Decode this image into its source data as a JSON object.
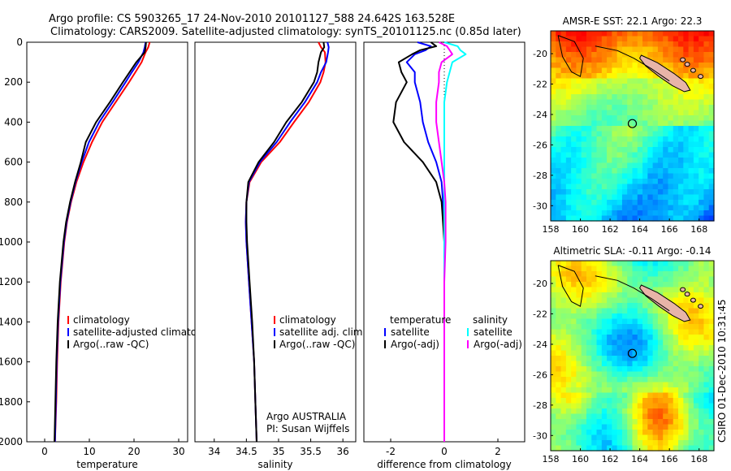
{
  "title_line1": "Argo profile: CS 5903265_17 24-Nov-2010 20101127_588 24.642S 163.528E",
  "title_line2": "Climatology: CARS2009. Satellite-adjusted climatology: synTS_20101125.nc (0.85d later)",
  "footer_text": "CSIRO 01-Dec-2010 10:31:45",
  "colors": {
    "red": "#ff0000",
    "blue": "#0000ff",
    "black": "#000000",
    "cyan": "#00ffff",
    "magenta": "#ff00ff"
  },
  "chart_data": [
    {
      "type": "line",
      "id": "temperature",
      "xlabel": "temperature",
      "xlim": [
        -4,
        32
      ],
      "ylim": [
        2000,
        0
      ],
      "xticks": [
        0,
        10,
        20,
        30
      ],
      "yticks": [
        0,
        200,
        400,
        600,
        800,
        1000,
        1200,
        1400,
        1600,
        1800,
        2000
      ],
      "y": [
        0,
        25,
        50,
        100,
        150,
        200,
        300,
        400,
        500,
        600,
        700,
        800,
        900,
        1000,
        1200,
        1400,
        1600,
        1800,
        2000
      ],
      "series": [
        {
          "name": "climatology",
          "color": "red",
          "values": [
            23.5,
            23.2,
            22.6,
            21.7,
            20.3,
            18.9,
            15.9,
            12.9,
            10.6,
            8.7,
            7.1,
            5.9,
            5.0,
            4.4,
            3.6,
            3.1,
            2.8,
            2.6,
            2.3
          ]
        },
        {
          "name": "satellite-adjusted climatology",
          "color": "blue",
          "values": [
            22.6,
            22.4,
            22.1,
            21.0,
            19.5,
            18.1,
            15.2,
            12.2,
            9.9,
            8.3,
            6.9,
            5.8,
            4.9,
            4.3,
            3.5,
            3.0,
            2.7,
            2.5,
            2.3
          ]
        },
        {
          "name": "Argo(..raw -QC)",
          "color": "black",
          "values": [
            22.7,
            22.6,
            22.4,
            20.5,
            19.0,
            17.5,
            14.6,
            11.5,
            9.2,
            8.1,
            6.8,
            5.7,
            4.8,
            4.2,
            3.4,
            2.9,
            2.6,
            2.4,
            2.2
          ]
        }
      ],
      "legend": [
        "climatology",
        "satellite-adjusted climatolog",
        "Argo(..raw -QC)"
      ],
      "legend_placement": "lower-right"
    },
    {
      "type": "line",
      "id": "salinity",
      "xlabel": "salinity",
      "xlim": [
        33.7,
        36.2
      ],
      "ylim": [
        2000,
        0
      ],
      "xticks": [
        34,
        34.5,
        35,
        35.5,
        36
      ],
      "xticklabels": [
        "34",
        "34.5",
        "35",
        "35.5",
        "36"
      ],
      "y": [
        0,
        25,
        50,
        100,
        150,
        200,
        300,
        400,
        500,
        600,
        700,
        800,
        900,
        1000,
        1200,
        1400,
        1600,
        1800,
        2000
      ],
      "series": [
        {
          "name": "climatology",
          "color": "red",
          "values": [
            35.62,
            35.66,
            35.72,
            35.73,
            35.7,
            35.65,
            35.47,
            35.24,
            35.02,
            34.73,
            34.55,
            34.5,
            34.49,
            34.5,
            34.54,
            34.58,
            34.62,
            34.64,
            34.66
          ]
        },
        {
          "name": "satellite adj. clim.",
          "color": "blue",
          "values": [
            35.76,
            35.78,
            35.77,
            35.74,
            35.66,
            35.6,
            35.41,
            35.18,
            34.97,
            34.71,
            34.54,
            34.5,
            34.49,
            34.5,
            34.54,
            34.58,
            34.62,
            34.64,
            34.66
          ]
        },
        {
          "name": "Argo(..raw -QC)",
          "color": "black",
          "values": [
            35.7,
            35.71,
            35.66,
            35.62,
            35.6,
            35.55,
            35.36,
            35.12,
            34.93,
            34.69,
            34.53,
            34.5,
            34.5,
            34.51,
            34.55,
            34.59,
            34.62,
            34.64,
            34.66
          ]
        }
      ],
      "legend": [
        "climatology",
        "satellite adj. clim.",
        "Argo(..raw -QC)"
      ],
      "legend_placement": "lower-right",
      "annotation": [
        "Argo AUSTRALIA",
        "PI: Susan Wijffels"
      ]
    },
    {
      "type": "line",
      "id": "difference",
      "xlabel": "difference from climatology",
      "xlim": [
        -3,
        3
      ],
      "ylim": [
        2000,
        0
      ],
      "xticks": [
        -2,
        0,
        2
      ],
      "zero_line": "dotted",
      "y": [
        0,
        20,
        40,
        60,
        100,
        150,
        200,
        300,
        400,
        500,
        600,
        700,
        800,
        900,
        1000,
        1200,
        1400,
        1600,
        1800,
        2000
      ],
      "series": [
        {
          "name": "temperature satellite",
          "color": "blue",
          "values": [
            -1.0,
            -0.5,
            -0.7,
            -1.1,
            -1.4,
            -1.1,
            -1.1,
            -0.9,
            -0.8,
            -0.6,
            -0.3,
            -0.1,
            -0.05,
            0.0,
            0.0,
            0.0,
            0.0,
            0.0,
            0.0,
            0.0
          ]
        },
        {
          "name": "temperature Argo(-adj)",
          "color": "black",
          "values": [
            -0.5,
            -0.3,
            -0.9,
            -1.2,
            -1.7,
            -1.6,
            -1.4,
            -1.8,
            -1.9,
            -1.5,
            -0.8,
            -0.3,
            -0.1,
            -0.05,
            0.0,
            0.0,
            0.0,
            0.0,
            0.0,
            0.0
          ]
        },
        {
          "name": "salinity satellite",
          "color": "cyan",
          "values": [
            0.0,
            0.5,
            0.6,
            0.8,
            0.3,
            0.2,
            0.1,
            0.0,
            0.0,
            0.0,
            0.0,
            0.0,
            0.0,
            0.0,
            0.0,
            0.0,
            0.0,
            0.0,
            0.0,
            0.0
          ]
        },
        {
          "name": "salinity Argo(-adj)",
          "color": "magenta",
          "values": [
            -0.2,
            0.1,
            0.2,
            0.3,
            -0.1,
            -0.2,
            -0.2,
            -0.3,
            -0.3,
            -0.2,
            -0.1,
            0.0,
            0.05,
            0.05,
            0.05,
            0.0,
            0.0,
            0.0,
            0.0,
            0.0
          ]
        }
      ],
      "legend_temperature": {
        "header": "temperature",
        "items": [
          "satellite",
          "Argo(-adj)"
        ]
      },
      "legend_salinity": {
        "header": "salinity",
        "items": [
          "satellite",
          "Argo(-adj)"
        ]
      },
      "legend_placement": "lower"
    },
    {
      "type": "heatmap",
      "id": "sst_map",
      "title": "AMSR-E SST: 22.1  Argo: 22.3",
      "xlim": [
        158,
        169
      ],
      "ylim": [
        -31,
        -18.5
      ],
      "xticks": [
        158,
        160,
        162,
        164,
        166,
        168
      ],
      "yticks": [
        -20,
        -22,
        -24,
        -26,
        -28,
        -30
      ],
      "marker": {
        "lon": 163.5,
        "lat": -24.6
      },
      "palette": "jet"
    },
    {
      "type": "heatmap",
      "id": "sla_map",
      "title": "Altimetric SLA: -0.11  Argo: -0.14",
      "xlim": [
        158,
        169
      ],
      "ylim": [
        -31,
        -18.5
      ],
      "xticks": [
        158,
        160,
        162,
        164,
        166,
        168
      ],
      "yticks": [
        -20,
        -22,
        -24,
        -26,
        -28,
        -30
      ],
      "marker": {
        "lon": 163.5,
        "lat": -24.6
      },
      "palette": "jet"
    }
  ]
}
